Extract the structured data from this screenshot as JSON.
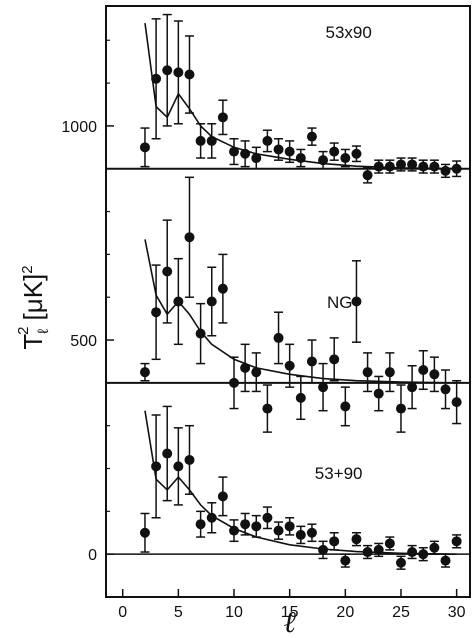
{
  "chart_data": {
    "type": "scatter",
    "title": "",
    "xlabel": "ℓ",
    "ylabel": "T_ℓ² [μK]²",
    "ylabel_parts": {
      "base": "T",
      "sub": "ℓ",
      "sup": "2",
      "unit_open": "[μK]",
      "unit_sup": "2"
    },
    "xlim": [
      -1.5,
      31.2
    ],
    "ylim": [
      -100,
      1280
    ],
    "x_ticks": [
      0,
      5,
      10,
      15,
      20,
      25,
      30
    ],
    "y_ticks": [
      0,
      500,
      1000
    ],
    "grid": false,
    "legend": "none",
    "marker_color": "#111111",
    "panels": [
      {
        "label": "53x90",
        "baseline": 900,
        "points": [
          {
            "x": 2,
            "y": 950,
            "err": 45
          },
          {
            "x": 3,
            "y": 1110,
            "err": 140
          },
          {
            "x": 4,
            "y": 1130,
            "err": 130
          },
          {
            "x": 5,
            "y": 1125,
            "err": 120
          },
          {
            "x": 6,
            "y": 1120,
            "err": 90
          },
          {
            "x": 7,
            "y": 965,
            "err": 40
          },
          {
            "x": 8,
            "y": 965,
            "err": 40
          },
          {
            "x": 9,
            "y": 1020,
            "err": 40
          },
          {
            "x": 10,
            "y": 940,
            "err": 30
          },
          {
            "x": 11,
            "y": 935,
            "err": 30
          },
          {
            "x": 12,
            "y": 925,
            "err": 25
          },
          {
            "x": 13,
            "y": 965,
            "err": 25
          },
          {
            "x": 14,
            "y": 945,
            "err": 25
          },
          {
            "x": 15,
            "y": 940,
            "err": 25
          },
          {
            "x": 16,
            "y": 925,
            "err": 20
          },
          {
            "x": 17,
            "y": 975,
            "err": 20
          },
          {
            "x": 18,
            "y": 920,
            "err": 20
          },
          {
            "x": 19,
            "y": 940,
            "err": 20
          },
          {
            "x": 20,
            "y": 925,
            "err": 20
          },
          {
            "x": 21,
            "y": 935,
            "err": 18
          },
          {
            "x": 22,
            "y": 885,
            "err": 18
          },
          {
            "x": 23,
            "y": 905,
            "err": 15
          },
          {
            "x": 24,
            "y": 905,
            "err": 15
          },
          {
            "x": 25,
            "y": 910,
            "err": 15
          },
          {
            "x": 26,
            "y": 910,
            "err": 15
          },
          {
            "x": 27,
            "y": 905,
            "err": 15
          },
          {
            "x": 28,
            "y": 905,
            "err": 15
          },
          {
            "x": 29,
            "y": 895,
            "err": 15
          },
          {
            "x": 30,
            "y": 900,
            "err": 18
          }
        ],
        "model": [
          {
            "x": 2,
            "y": 1240
          },
          {
            "x": 3,
            "y": 1045
          },
          {
            "x": 4,
            "y": 1020
          },
          {
            "x": 5,
            "y": 1075
          },
          {
            "x": 6,
            "y": 1040
          },
          {
            "x": 7,
            "y": 1000
          },
          {
            "x": 8,
            "y": 975
          },
          {
            "x": 10,
            "y": 950
          },
          {
            "x": 12,
            "y": 935
          },
          {
            "x": 15,
            "y": 922
          },
          {
            "x": 18,
            "y": 912
          },
          {
            "x": 21,
            "y": 906
          },
          {
            "x": 25,
            "y": 902
          },
          {
            "x": 30,
            "y": 900
          }
        ]
      },
      {
        "label": "NG",
        "baseline": 400,
        "points": [
          {
            "x": 2,
            "y": 425,
            "err": 20
          },
          {
            "x": 3,
            "y": 565,
            "err": 110
          },
          {
            "x": 4,
            "y": 660,
            "err": 120
          },
          {
            "x": 5,
            "y": 590,
            "err": 100
          },
          {
            "x": 6,
            "y": 740,
            "err": 140
          },
          {
            "x": 7,
            "y": 515,
            "err": 70
          },
          {
            "x": 8,
            "y": 590,
            "err": 80
          },
          {
            "x": 9,
            "y": 620,
            "err": 80
          },
          {
            "x": 10,
            "y": 400,
            "err": 60
          },
          {
            "x": 11,
            "y": 435,
            "err": 55
          },
          {
            "x": 12,
            "y": 425,
            "err": 45
          },
          {
            "x": 13,
            "y": 340,
            "err": 55
          },
          {
            "x": 14,
            "y": 505,
            "err": 60
          },
          {
            "x": 15,
            "y": 440,
            "err": 50
          },
          {
            "x": 16,
            "y": 365,
            "err": 50
          },
          {
            "x": 17,
            "y": 450,
            "err": 50
          },
          {
            "x": 18,
            "y": 390,
            "err": 55
          },
          {
            "x": 19,
            "y": 455,
            "err": 50
          },
          {
            "x": 20,
            "y": 345,
            "err": 45
          },
          {
            "x": 21,
            "y": 590,
            "err": 95
          },
          {
            "x": 22,
            "y": 425,
            "err": 45
          },
          {
            "x": 23,
            "y": 375,
            "err": 40
          },
          {
            "x": 24,
            "y": 425,
            "err": 45
          },
          {
            "x": 25,
            "y": 340,
            "err": 55
          },
          {
            "x": 26,
            "y": 390,
            "err": 50
          },
          {
            "x": 27,
            "y": 430,
            "err": 45
          },
          {
            "x": 28,
            "y": 420,
            "err": 40
          },
          {
            "x": 29,
            "y": 385,
            "err": 45
          },
          {
            "x": 30,
            "y": 355,
            "err": 50
          }
        ],
        "model": [
          {
            "x": 2,
            "y": 735
          },
          {
            "x": 3,
            "y": 605
          },
          {
            "x": 4,
            "y": 560
          },
          {
            "x": 5,
            "y": 590
          },
          {
            "x": 6,
            "y": 560
          },
          {
            "x": 7,
            "y": 520
          },
          {
            "x": 8,
            "y": 490
          },
          {
            "x": 10,
            "y": 455
          },
          {
            "x": 12,
            "y": 435
          },
          {
            "x": 15,
            "y": 420
          },
          {
            "x": 18,
            "y": 410
          },
          {
            "x": 21,
            "y": 405
          },
          {
            "x": 25,
            "y": 402
          },
          {
            "x": 30,
            "y": 400
          }
        ]
      },
      {
        "label": "53+90",
        "baseline": 0,
        "points": [
          {
            "x": 2,
            "y": 50,
            "err": 45
          },
          {
            "x": 3,
            "y": 205,
            "err": 120
          },
          {
            "x": 4,
            "y": 235,
            "err": 110
          },
          {
            "x": 5,
            "y": 205,
            "err": 90
          },
          {
            "x": 6,
            "y": 220,
            "err": 80
          },
          {
            "x": 7,
            "y": 70,
            "err": 30
          },
          {
            "x": 8,
            "y": 85,
            "err": 35
          },
          {
            "x": 9,
            "y": 135,
            "err": 45
          },
          {
            "x": 10,
            "y": 55,
            "err": 25
          },
          {
            "x": 11,
            "y": 70,
            "err": 25
          },
          {
            "x": 12,
            "y": 65,
            "err": 25
          },
          {
            "x": 13,
            "y": 85,
            "err": 25
          },
          {
            "x": 14,
            "y": 55,
            "err": 20
          },
          {
            "x": 15,
            "y": 65,
            "err": 20
          },
          {
            "x": 16,
            "y": 45,
            "err": 20
          },
          {
            "x": 17,
            "y": 50,
            "err": 20
          },
          {
            "x": 18,
            "y": 10,
            "err": 20
          },
          {
            "x": 19,
            "y": 30,
            "err": 20
          },
          {
            "x": 20,
            "y": -15,
            "err": 15
          },
          {
            "x": 21,
            "y": 35,
            "err": 15
          },
          {
            "x": 22,
            "y": 5,
            "err": 15
          },
          {
            "x": 23,
            "y": 10,
            "err": 15
          },
          {
            "x": 24,
            "y": 25,
            "err": 15
          },
          {
            "x": 25,
            "y": -20,
            "err": 15
          },
          {
            "x": 26,
            "y": 5,
            "err": 15
          },
          {
            "x": 27,
            "y": 0,
            "err": 15
          },
          {
            "x": 28,
            "y": 15,
            "err": 15
          },
          {
            "x": 29,
            "y": -15,
            "err": 15
          },
          {
            "x": 30,
            "y": 30,
            "err": 15
          }
        ],
        "model": [
          {
            "x": 2,
            "y": 335
          },
          {
            "x": 3,
            "y": 175
          },
          {
            "x": 4,
            "y": 150
          },
          {
            "x": 5,
            "y": 180
          },
          {
            "x": 6,
            "y": 150
          },
          {
            "x": 7,
            "y": 115
          },
          {
            "x": 8,
            "y": 90
          },
          {
            "x": 10,
            "y": 60
          },
          {
            "x": 12,
            "y": 40
          },
          {
            "x": 15,
            "y": 22
          },
          {
            "x": 18,
            "y": 12
          },
          {
            "x": 21,
            "y": 6
          },
          {
            "x": 25,
            "y": 2
          },
          {
            "x": 30,
            "y": 0
          }
        ]
      }
    ]
  }
}
